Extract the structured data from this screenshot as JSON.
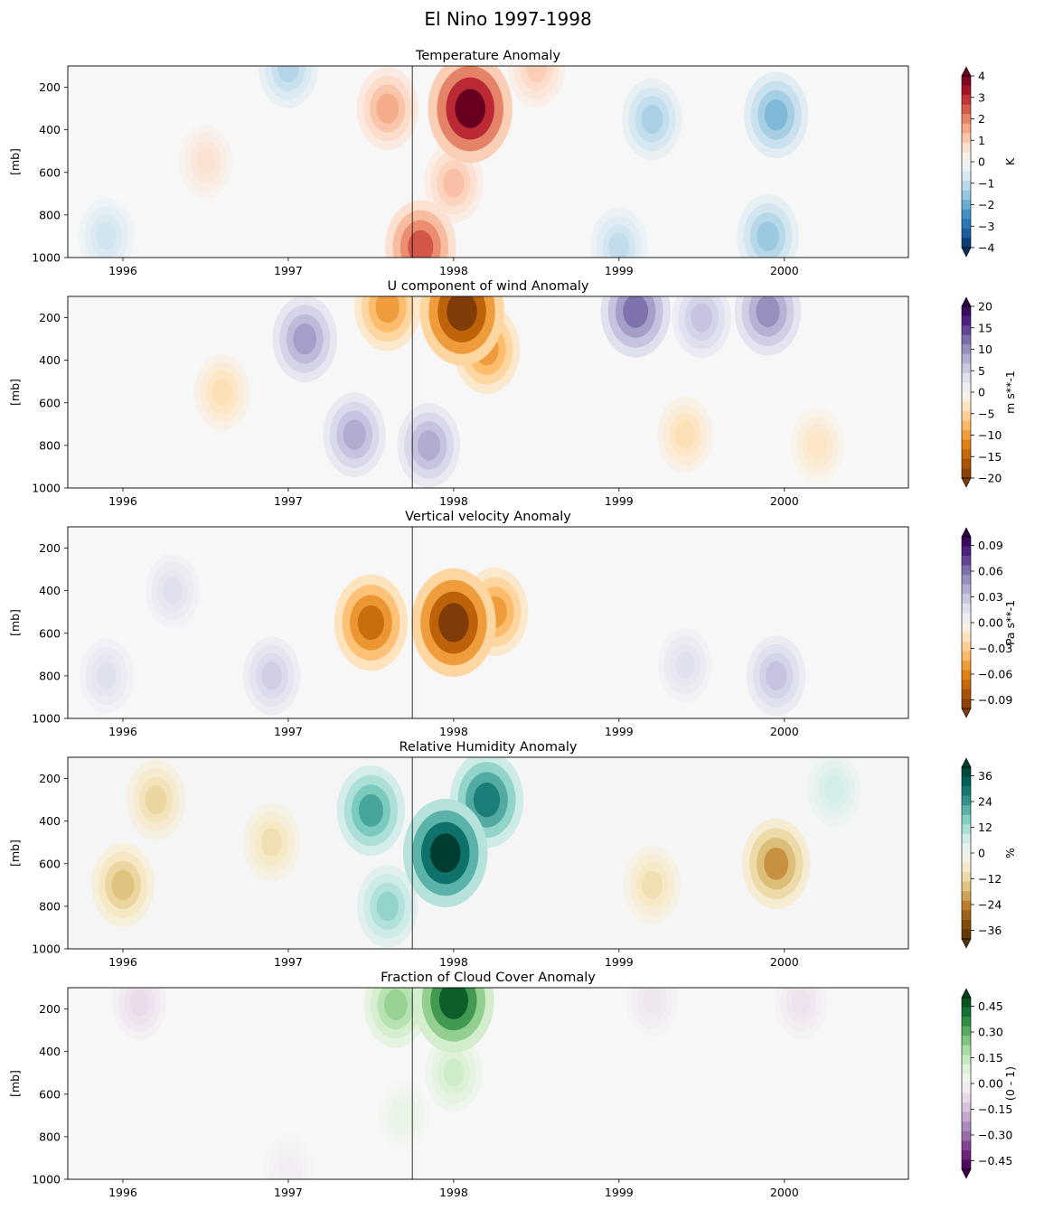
{
  "figure_title": "El Nino 1997-1998",
  "chart_data": [
    {
      "type": "heatmap",
      "title": "Temperature Anomaly",
      "ylabel": "[mb]",
      "xlabel": "",
      "x_ticks": [
        "1996",
        "1997",
        "1998",
        "1999",
        "2000"
      ],
      "y_ticks": [
        200,
        400,
        600,
        800,
        1000
      ],
      "xlim": [
        "1995-09",
        "2000-10"
      ],
      "ylim": [
        1000,
        100
      ],
      "colormap": "RdBu_r",
      "colorbar": {
        "label": "K",
        "ticks": [
          4,
          3,
          2,
          1,
          0,
          -1,
          -2,
          -3,
          -4
        ],
        "range": [
          -4,
          4
        ]
      },
      "reference_line_x": "1997-10",
      "features": [
        {
          "x": 1998.1,
          "p": 300,
          "value": 4.0
        },
        {
          "x": 1997.6,
          "p": 300,
          "value": 1.5
        },
        {
          "x": 1997.8,
          "p": 950,
          "value": 2.5
        },
        {
          "x": 1998.0,
          "p": 650,
          "value": 1.2
        },
        {
          "x": 1999.2,
          "p": 350,
          "value": -1.3
        },
        {
          "x": 1999.95,
          "p": 330,
          "value": -1.8
        },
        {
          "x": 1999.9,
          "p": 900,
          "value": -1.5
        },
        {
          "x": 1999.0,
          "p": 950,
          "value": -1.0
        },
        {
          "x": 1996.5,
          "p": 550,
          "value": 0.6
        },
        {
          "x": 1995.9,
          "p": 900,
          "value": -0.8
        },
        {
          "x": 1998.5,
          "p": 110,
          "value": 1.0
        },
        {
          "x": 1997.0,
          "p": 110,
          "value": -1.2
        }
      ]
    },
    {
      "type": "heatmap",
      "title": "U component of wind Anomaly",
      "ylabel": "[mb]",
      "xlabel": "",
      "x_ticks": [
        "1996",
        "1997",
        "1998",
        "1999",
        "2000"
      ],
      "y_ticks": [
        200,
        400,
        600,
        800,
        1000
      ],
      "xlim": [
        "1995-09",
        "2000-10"
      ],
      "ylim": [
        1000,
        100
      ],
      "colormap": "PuOr",
      "colorbar": {
        "label": "m s**-1",
        "ticks": [
          20,
          15,
          10,
          5,
          0,
          -5,
          -10,
          -15,
          -20
        ],
        "range": [
          -20,
          20
        ]
      },
      "reference_line_x": "1997-10",
      "features": [
        {
          "x": 1998.05,
          "p": 170,
          "value": -20
        },
        {
          "x": 1997.6,
          "p": 150,
          "value": -10
        },
        {
          "x": 1998.2,
          "p": 350,
          "value": -10
        },
        {
          "x": 1997.85,
          "p": 800,
          "value": 8
        },
        {
          "x": 1997.4,
          "p": 750,
          "value": 8
        },
        {
          "x": 1997.1,
          "p": 300,
          "value": 9
        },
        {
          "x": 1999.1,
          "p": 170,
          "value": 12
        },
        {
          "x": 1999.9,
          "p": 170,
          "value": 10
        },
        {
          "x": 1999.5,
          "p": 200,
          "value": 6
        },
        {
          "x": 1996.6,
          "p": 550,
          "value": -4
        },
        {
          "x": 1999.4,
          "p": 750,
          "value": -4
        },
        {
          "x": 2000.2,
          "p": 800,
          "value": -3
        }
      ]
    },
    {
      "type": "heatmap",
      "title": "Vertical velocity Anomaly",
      "ylabel": "[mb]",
      "xlabel": "",
      "x_ticks": [
        "1996",
        "1997",
        "1998",
        "1999",
        "2000"
      ],
      "y_ticks": [
        200,
        400,
        600,
        800,
        1000
      ],
      "xlim": [
        "1995-09",
        "2000-10"
      ],
      "ylim": [
        1000,
        100
      ],
      "colormap": "PuOr",
      "colorbar": {
        "label": "Pa s**-1",
        "ticks": [
          0.09,
          0.06,
          0.03,
          0.0,
          -0.03,
          -0.06,
          -0.09
        ],
        "range": [
          -0.1,
          0.1
        ]
      },
      "reference_line_x": "1997-10",
      "features": [
        {
          "x": 1998.0,
          "p": 550,
          "value": -0.1
        },
        {
          "x": 1997.5,
          "p": 550,
          "value": -0.07
        },
        {
          "x": 1998.25,
          "p": 500,
          "value": -0.05
        },
        {
          "x": 1996.9,
          "p": 800,
          "value": 0.025
        },
        {
          "x": 1999.95,
          "p": 800,
          "value": 0.03
        },
        {
          "x": 1995.9,
          "p": 800,
          "value": 0.015
        },
        {
          "x": 1996.3,
          "p": 400,
          "value": 0.015
        },
        {
          "x": 1999.4,
          "p": 750,
          "value": 0.015
        }
      ]
    },
    {
      "type": "heatmap",
      "title": "Relative Humidity Anomaly",
      "ylabel": "[mb]",
      "xlabel": "",
      "x_ticks": [
        "1996",
        "1997",
        "1998",
        "1999",
        "2000"
      ],
      "y_ticks": [
        200,
        400,
        600,
        800,
        1000
      ],
      "xlim": [
        "1995-09",
        "2000-10"
      ],
      "ylim": [
        1000,
        100
      ],
      "colormap": "BrBG",
      "colorbar": {
        "label": "%",
        "ticks": [
          36,
          24,
          12,
          0,
          -12,
          -24,
          -36
        ],
        "range": [
          -40,
          40
        ]
      },
      "reference_line_x": "1997-10",
      "features": [
        {
          "x": 1997.95,
          "p": 550,
          "value": 40
        },
        {
          "x": 1997.5,
          "p": 350,
          "value": 22
        },
        {
          "x": 1998.2,
          "p": 300,
          "value": 28
        },
        {
          "x": 1997.6,
          "p": 800,
          "value": 14
        },
        {
          "x": 1996.0,
          "p": 700,
          "value": -16
        },
        {
          "x": 1996.2,
          "p": 300,
          "value": -12
        },
        {
          "x": 1999.95,
          "p": 600,
          "value": -22
        },
        {
          "x": 1999.2,
          "p": 700,
          "value": -10
        },
        {
          "x": 1996.9,
          "p": 500,
          "value": -10
        },
        {
          "x": 2000.3,
          "p": 250,
          "value": 6
        }
      ]
    },
    {
      "type": "heatmap",
      "title": "Fraction of Cloud Cover Anomaly",
      "ylabel": "[mb]",
      "xlabel": "",
      "x_ticks": [
        "1996",
        "1997",
        "1998",
        "1999",
        "2000"
      ],
      "y_ticks": [
        200,
        400,
        600,
        800,
        1000
      ],
      "xlim": [
        "1995-09",
        "2000-10"
      ],
      "ylim": [
        1000,
        100
      ],
      "colormap": "PRGn",
      "colorbar": {
        "label": "(0 - 1)",
        "ticks": [
          0.45,
          0.3,
          0.15,
          0.0,
          -0.15,
          -0.3,
          -0.45
        ],
        "range": [
          -0.5,
          0.5
        ]
      },
      "reference_line_x": "1997-10",
      "features": [
        {
          "x": 1998.0,
          "p": 160,
          "value": 0.45
        },
        {
          "x": 1997.65,
          "p": 180,
          "value": 0.22
        },
        {
          "x": 1998.0,
          "p": 500,
          "value": 0.12
        },
        {
          "x": 1997.7,
          "p": 700,
          "value": 0.05
        },
        {
          "x": 1996.1,
          "p": 170,
          "value": -0.08
        },
        {
          "x": 2000.1,
          "p": 170,
          "value": -0.06
        },
        {
          "x": 1999.2,
          "p": 160,
          "value": -0.05
        },
        {
          "x": 1997.0,
          "p": 950,
          "value": -0.03
        }
      ]
    }
  ]
}
